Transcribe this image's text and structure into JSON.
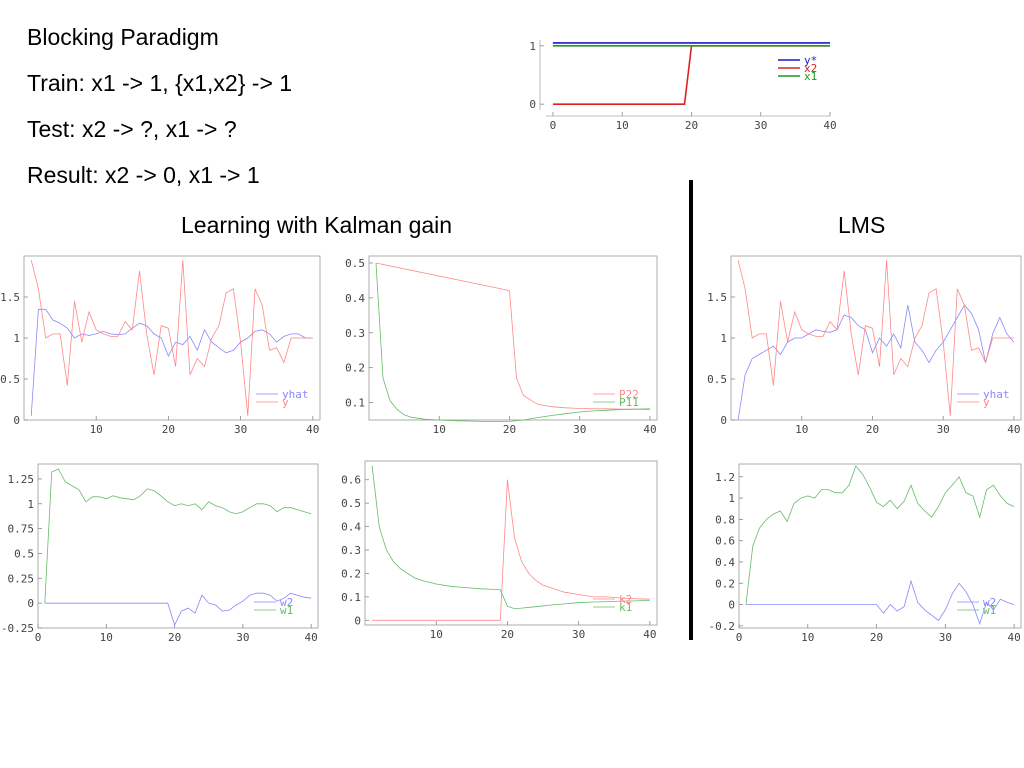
{
  "slide": {
    "lines": [
      "Blocking Paradigm",
      "Train: x1 -> 1, {x1,x2} -> 1",
      "Test: x2 -> ?, x1 -> ?",
      "Result: x2 -> 0, x1 -> 1"
    ],
    "kalman_title": "Learning with Kalman gain",
    "lms_title": "LMS"
  },
  "chart_data": [
    {
      "id": "schedule",
      "type": "line",
      "xlim": [
        -1,
        40
      ],
      "ylim": [
        -0.1,
        1.1
      ],
      "xticks": [
        0,
        10,
        20,
        30,
        40
      ],
      "yticks": [
        0,
        1
      ],
      "legend": "right",
      "series": [
        {
          "name": "y*",
          "color": "#1a1acc",
          "x": [
            0,
            40
          ],
          "values": [
            1.05,
            1.05
          ]
        },
        {
          "name": "x2",
          "color": "#dd2222",
          "x": [
            0,
            19,
            20,
            40
          ],
          "values": [
            0,
            0,
            1,
            1
          ]
        },
        {
          "name": "x1",
          "color": "#229922",
          "x": [
            0,
            40
          ],
          "values": [
            1.0,
            1.0
          ]
        }
      ]
    },
    {
      "id": "kalman-y",
      "type": "line",
      "xlim": [
        0,
        41
      ],
      "ylim": [
        0,
        2.0
      ],
      "xticks": [
        10,
        20,
        30,
        40
      ],
      "yticks": [
        0,
        0.5,
        1,
        1.5
      ],
      "ytick_labels": [
        "0",
        "0.5",
        "1",
        "1.5"
      ],
      "legend": "bottom-right",
      "series": [
        {
          "name": "yhat",
          "color": "#8888ff",
          "x": [
            1,
            2,
            3,
            4,
            5,
            6,
            7,
            8,
            9,
            10,
            11,
            12,
            13,
            14,
            15,
            16,
            17,
            18,
            19,
            20,
            21,
            22,
            23,
            24,
            25,
            26,
            27,
            28,
            29,
            30,
            31,
            32,
            33,
            34,
            35,
            36,
            37,
            38,
            39,
            40
          ],
          "values": [
            0.05,
            1.35,
            1.35,
            1.22,
            1.18,
            1.12,
            1.0,
            1.05,
            1.03,
            1.05,
            1.08,
            1.05,
            1.04,
            1.05,
            1.12,
            1.18,
            1.15,
            1.05,
            1.0,
            0.78,
            0.95,
            0.92,
            1.02,
            0.85,
            1.1,
            0.95,
            0.88,
            0.82,
            0.85,
            0.95,
            1.0,
            1.08,
            1.1,
            1.05,
            0.95,
            1.02,
            1.05,
            1.05,
            1.0,
            1.0
          ]
        },
        {
          "name": "y",
          "color": "#ff8888",
          "x": [
            1,
            2,
            3,
            4,
            5,
            6,
            7,
            8,
            9,
            10,
            11,
            12,
            13,
            14,
            15,
            16,
            17,
            18,
            19,
            20,
            21,
            22,
            23,
            24,
            25,
            26,
            27,
            28,
            29,
            30,
            31,
            32,
            33,
            34,
            35,
            36,
            37,
            38,
            39,
            40
          ],
          "values": [
            1.95,
            1.6,
            1.0,
            1.05,
            1.05,
            0.42,
            1.45,
            0.95,
            1.32,
            1.1,
            1.05,
            1.02,
            1.02,
            1.2,
            1.1,
            1.82,
            1.05,
            0.55,
            1.15,
            1.12,
            0.65,
            1.95,
            0.55,
            0.75,
            0.65,
            1.0,
            1.15,
            1.55,
            1.6,
            0.95,
            0.05,
            1.6,
            1.4,
            0.85,
            0.88,
            0.7,
            1.0,
            1.0,
            1.0,
            1.0
          ]
        }
      ]
    },
    {
      "id": "kalman-P",
      "type": "line",
      "xlim": [
        0,
        41
      ],
      "ylim": [
        0.05,
        0.52
      ],
      "xticks": [
        10,
        20,
        30,
        40
      ],
      "yticks": [
        0.1,
        0.2,
        0.3,
        0.4,
        0.5
      ],
      "ytick_labels": [
        "0.1",
        "0.2",
        "0.3",
        "0.4",
        "0.5"
      ],
      "legend": "bottom-right",
      "series": [
        {
          "name": "P22",
          "color": "#ff8888",
          "x": [
            1,
            19,
            20,
            21,
            22,
            24,
            26,
            28,
            30,
            32,
            34,
            36,
            38,
            40
          ],
          "values": [
            0.5,
            0.425,
            0.42,
            0.17,
            0.12,
            0.095,
            0.088,
            0.085,
            0.083,
            0.082,
            0.082,
            0.081,
            0.081,
            0.08
          ]
        },
        {
          "name": "P11",
          "color": "#66bb66",
          "x": [
            1,
            2,
            3,
            4,
            5,
            6,
            7,
            8,
            10,
            12,
            14,
            16,
            18,
            20,
            22,
            24,
            26,
            28,
            30,
            32,
            34,
            36,
            38,
            40
          ],
          "values": [
            0.5,
            0.17,
            0.105,
            0.08,
            0.065,
            0.058,
            0.055,
            0.052,
            0.05,
            0.048,
            0.047,
            0.046,
            0.046,
            0.046,
            0.05,
            0.057,
            0.063,
            0.068,
            0.073,
            0.076,
            0.078,
            0.08,
            0.081,
            0.082
          ]
        }
      ]
    },
    {
      "id": "lms-y",
      "type": "line",
      "xlim": [
        0,
        41
      ],
      "ylim": [
        0,
        2.0
      ],
      "xticks": [
        10,
        20,
        30,
        40
      ],
      "yticks": [
        0,
        0.5,
        1,
        1.5
      ],
      "ytick_labels": [
        "0",
        "0.5",
        "1",
        "1.5"
      ],
      "legend": "bottom-right",
      "series": [
        {
          "name": "yhat",
          "color": "#8888ff",
          "x": [
            1,
            2,
            3,
            4,
            5,
            6,
            7,
            8,
            9,
            10,
            11,
            12,
            13,
            14,
            15,
            16,
            17,
            18,
            19,
            20,
            21,
            22,
            23,
            24,
            25,
            26,
            27,
            28,
            29,
            30,
            31,
            32,
            33,
            34,
            35,
            36,
            37,
            38,
            39,
            40
          ],
          "values": [
            0.0,
            0.55,
            0.75,
            0.8,
            0.85,
            0.9,
            0.8,
            0.95,
            1.0,
            1.0,
            1.05,
            1.1,
            1.08,
            1.07,
            1.1,
            1.28,
            1.25,
            1.15,
            1.1,
            0.82,
            1.0,
            0.9,
            1.05,
            0.88,
            1.4,
            0.95,
            0.85,
            0.7,
            0.85,
            0.95,
            1.1,
            1.25,
            1.4,
            1.3,
            1.1,
            0.7,
            1.05,
            1.25,
            1.05,
            0.95
          ]
        },
        {
          "name": "y",
          "color": "#ff8888",
          "x": [
            1,
            2,
            3,
            4,
            5,
            6,
            7,
            8,
            9,
            10,
            11,
            12,
            13,
            14,
            15,
            16,
            17,
            18,
            19,
            20,
            21,
            22,
            23,
            24,
            25,
            26,
            27,
            28,
            29,
            30,
            31,
            32,
            33,
            34,
            35,
            36,
            37,
            38,
            39,
            40
          ],
          "values": [
            1.95,
            1.6,
            1.0,
            1.05,
            1.05,
            0.42,
            1.45,
            0.95,
            1.32,
            1.1,
            1.05,
            1.02,
            1.02,
            1.2,
            1.1,
            1.82,
            1.05,
            0.55,
            1.15,
            1.12,
            0.65,
            1.95,
            0.55,
            0.75,
            0.65,
            1.0,
            1.15,
            1.55,
            1.6,
            0.95,
            0.05,
            1.6,
            1.4,
            0.85,
            0.88,
            0.7,
            1.0,
            1.0,
            1.0,
            1.0
          ]
        }
      ]
    },
    {
      "id": "kalman-w",
      "type": "line",
      "xlim": [
        0,
        41
      ],
      "ylim": [
        -0.25,
        1.4
      ],
      "xticks": [
        0,
        10,
        20,
        30,
        40
      ],
      "yticks": [
        -0.25,
        0,
        0.25,
        0.5,
        0.75,
        1,
        1.25
      ],
      "ytick_labels": [
        "-0.25",
        "0",
        "0.25",
        "0.5",
        "0.75",
        "1",
        "1.25"
      ],
      "legend": "bottom-right",
      "series": [
        {
          "name": "w2",
          "color": "#8888ff",
          "x": [
            1,
            19,
            20,
            21,
            22,
            23,
            24,
            25,
            26,
            27,
            28,
            29,
            30,
            31,
            32,
            33,
            34,
            35,
            36,
            37,
            38,
            39,
            40
          ],
          "values": [
            0,
            0,
            -0.22,
            -0.08,
            -0.05,
            -0.1,
            0.08,
            0.0,
            -0.02,
            -0.08,
            -0.07,
            -0.02,
            0.02,
            0.08,
            0.1,
            0.1,
            0.08,
            0.02,
            0.05,
            0.1,
            0.08,
            0.06,
            0.05
          ]
        },
        {
          "name": "w1",
          "color": "#66bb66",
          "x": [
            1,
            2,
            3,
            4,
            5,
            6,
            7,
            8,
            9,
            10,
            11,
            12,
            13,
            14,
            15,
            16,
            17,
            18,
            19,
            20,
            21,
            22,
            23,
            24,
            25,
            26,
            27,
            28,
            29,
            30,
            31,
            32,
            33,
            34,
            35,
            36,
            37,
            38,
            39,
            40
          ],
          "values": [
            0,
            1.32,
            1.35,
            1.22,
            1.18,
            1.14,
            1.02,
            1.07,
            1.07,
            1.05,
            1.08,
            1.06,
            1.05,
            1.04,
            1.08,
            1.15,
            1.13,
            1.08,
            1.02,
            0.98,
            1.0,
            0.98,
            1.0,
            0.94,
            1.02,
            0.98,
            0.96,
            0.92,
            0.9,
            0.92,
            0.96,
            1.0,
            1.0,
            0.98,
            0.92,
            0.96,
            0.96,
            0.94,
            0.92,
            0.9
          ]
        }
      ]
    },
    {
      "id": "kalman-k",
      "type": "line",
      "xlim": [
        0,
        41
      ],
      "ylim": [
        -0.02,
        0.68
      ],
      "xticks": [
        10,
        20,
        30,
        40
      ],
      "yticks": [
        0,
        0.1,
        0.2,
        0.3,
        0.4,
        0.5,
        0.6
      ],
      "ytick_labels": [
        "0",
        "0.1",
        "0.2",
        "0.3",
        "0.4",
        "0.5",
        "0.6"
      ],
      "legend": "bottom-right",
      "series": [
        {
          "name": "k2",
          "color": "#ff8888",
          "x": [
            1,
            19,
            20,
            21,
            22,
            23,
            24,
            25,
            26,
            28,
            30,
            32,
            34,
            36,
            38,
            40
          ],
          "values": [
            0,
            0,
            0.6,
            0.35,
            0.25,
            0.2,
            0.17,
            0.15,
            0.14,
            0.12,
            0.11,
            0.1,
            0.1,
            0.095,
            0.092,
            0.09
          ]
        },
        {
          "name": "k1",
          "color": "#66bb66",
          "x": [
            1,
            2,
            3,
            4,
            5,
            6,
            7,
            8,
            10,
            12,
            14,
            16,
            18,
            19,
            20,
            21,
            22,
            24,
            26,
            28,
            30,
            32,
            34,
            36,
            38,
            40
          ],
          "values": [
            0.66,
            0.4,
            0.3,
            0.25,
            0.22,
            0.2,
            0.18,
            0.17,
            0.155,
            0.145,
            0.14,
            0.135,
            0.132,
            0.13,
            0.06,
            0.05,
            0.052,
            0.058,
            0.065,
            0.07,
            0.075,
            0.078,
            0.08,
            0.082,
            0.083,
            0.085
          ]
        }
      ]
    },
    {
      "id": "lms-w",
      "type": "line",
      "xlim": [
        0,
        41
      ],
      "ylim": [
        -0.22,
        1.32
      ],
      "xticks": [
        0,
        10,
        20,
        30,
        40
      ],
      "yticks": [
        -0.2,
        0,
        0.2,
        0.4,
        0.6,
        0.8,
        1,
        1.2
      ],
      "ytick_labels": [
        "-0.2",
        "0",
        "0.2",
        "0.4",
        "0.6",
        "0.8",
        "1",
        "1.2"
      ],
      "legend": "bottom-right",
      "series": [
        {
          "name": "w2",
          "color": "#8888ff",
          "x": [
            1,
            19,
            20,
            21,
            22,
            23,
            24,
            25,
            26,
            27,
            28,
            29,
            30,
            31,
            32,
            33,
            34,
            35,
            36,
            37,
            38,
            39,
            40
          ],
          "values": [
            0,
            0,
            0,
            -0.08,
            0.0,
            -0.06,
            -0.02,
            0.22,
            0.02,
            -0.05,
            -0.1,
            -0.15,
            -0.05,
            0.1,
            0.2,
            0.12,
            0.0,
            -0.18,
            0.02,
            -0.05,
            0.05,
            0.02,
            0.0
          ]
        },
        {
          "name": "w1",
          "color": "#66bb66",
          "x": [
            1,
            2,
            3,
            4,
            5,
            6,
            7,
            8,
            9,
            10,
            11,
            12,
            13,
            14,
            15,
            16,
            17,
            18,
            19,
            20,
            21,
            22,
            23,
            24,
            25,
            26,
            27,
            28,
            29,
            30,
            31,
            32,
            33,
            34,
            35,
            36,
            37,
            38,
            39,
            40
          ],
          "values": [
            0,
            0.55,
            0.72,
            0.8,
            0.85,
            0.88,
            0.78,
            0.95,
            1.0,
            1.02,
            1.0,
            1.08,
            1.08,
            1.05,
            1.05,
            1.12,
            1.3,
            1.22,
            1.1,
            0.96,
            0.92,
            0.98,
            0.9,
            0.97,
            1.12,
            0.95,
            0.88,
            0.82,
            0.92,
            1.05,
            1.12,
            1.2,
            1.05,
            1.02,
            0.82,
            1.08,
            1.12,
            1.02,
            0.95,
            0.92
          ]
        }
      ]
    }
  ]
}
